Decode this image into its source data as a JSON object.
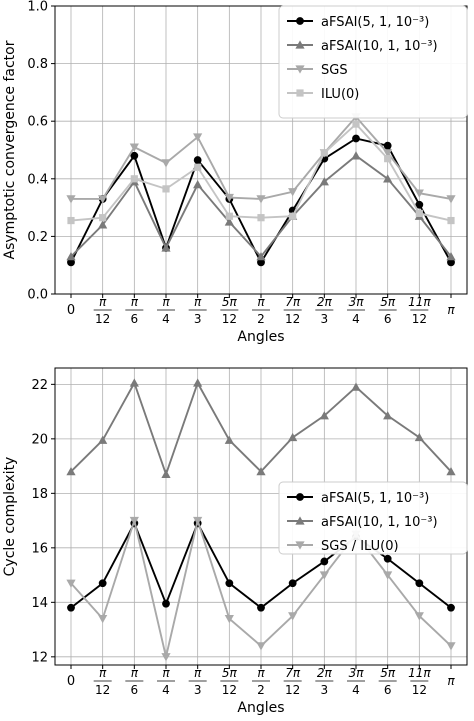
{
  "chart_data": [
    {
      "type": "line",
      "xlabel": "Angles",
      "ylabel": "Asymptotic convergence factor",
      "ylim": [
        0,
        1
      ],
      "yticks": [
        "0.0",
        "0.2",
        "0.4",
        "0.6",
        "0.8",
        "1.0"
      ],
      "grid": true,
      "legend": "top-right",
      "categories": [
        "0",
        "π/12",
        "π/6",
        "π/4",
        "π/3",
        "5π/12",
        "π/2",
        "7π/12",
        "2π/3",
        "3π/4",
        "5π/6",
        "11π/12",
        "π"
      ],
      "series": [
        {
          "name": "aFSAI(5, 1, 10⁻³)",
          "color": "#000000",
          "marker": "circle",
          "values": [
            0.11,
            0.33,
            0.48,
            0.16,
            0.465,
            0.33,
            0.11,
            0.29,
            0.47,
            0.54,
            0.515,
            0.31,
            0.11
          ]
        },
        {
          "name": "aFSAI(10, 1, 10⁻³)",
          "color": "#7a7a7a",
          "marker": "triangle-up",
          "values": [
            0.13,
            0.24,
            0.39,
            0.16,
            0.38,
            0.25,
            0.13,
            0.27,
            0.39,
            0.48,
            0.4,
            0.27,
            0.13
          ]
        },
        {
          "name": "SGS",
          "color": "#a9a9a9",
          "marker": "triangle-down",
          "values": [
            0.33,
            0.33,
            0.51,
            0.455,
            0.545,
            0.335,
            0.33,
            0.355,
            0.49,
            0.615,
            0.49,
            0.35,
            0.33
          ]
        },
        {
          "name": "ILU(0)",
          "color": "#c4c4c4",
          "marker": "square",
          "values": [
            0.255,
            0.265,
            0.4,
            0.365,
            0.44,
            0.27,
            0.265,
            0.27,
            0.49,
            0.59,
            0.47,
            0.28,
            0.255
          ]
        }
      ]
    },
    {
      "type": "line",
      "xlabel": "Angles",
      "ylabel": "Cycle complexity",
      "ylim": [
        11.7,
        22.6
      ],
      "yticks": [
        "12",
        "14",
        "16",
        "18",
        "20",
        "22"
      ],
      "grid": true,
      "legend": "lower-right",
      "categories": [
        "0",
        "π/12",
        "π/6",
        "π/4",
        "π/3",
        "5π/12",
        "π/2",
        "7π/12",
        "2π/3",
        "3π/4",
        "5π/6",
        "11π/12",
        "π"
      ],
      "series": [
        {
          "name": "aFSAI(5, 1, 10⁻³)",
          "color": "#000000",
          "marker": "circle",
          "values": [
            13.8,
            14.7,
            16.9,
            13.95,
            16.9,
            14.7,
            13.8,
            14.7,
            15.5,
            16.4,
            15.6,
            14.7,
            13.8
          ]
        },
        {
          "name": "aFSAI(10, 1, 10⁻³)",
          "color": "#7a7a7a",
          "marker": "triangle-up",
          "values": [
            18.8,
            19.95,
            22.05,
            18.7,
            22.05,
            19.95,
            18.8,
            20.05,
            20.85,
            21.9,
            20.85,
            20.05,
            18.8
          ]
        },
        {
          "name": "SGS / ILU(0)",
          "color": "#a9a9a9",
          "marker": "triangle-down",
          "values": [
            14.7,
            13.4,
            17.0,
            12.0,
            17.0,
            13.4,
            12.4,
            13.5,
            15.0,
            16.5,
            15.0,
            13.5,
            12.4
          ]
        }
      ]
    }
  ]
}
